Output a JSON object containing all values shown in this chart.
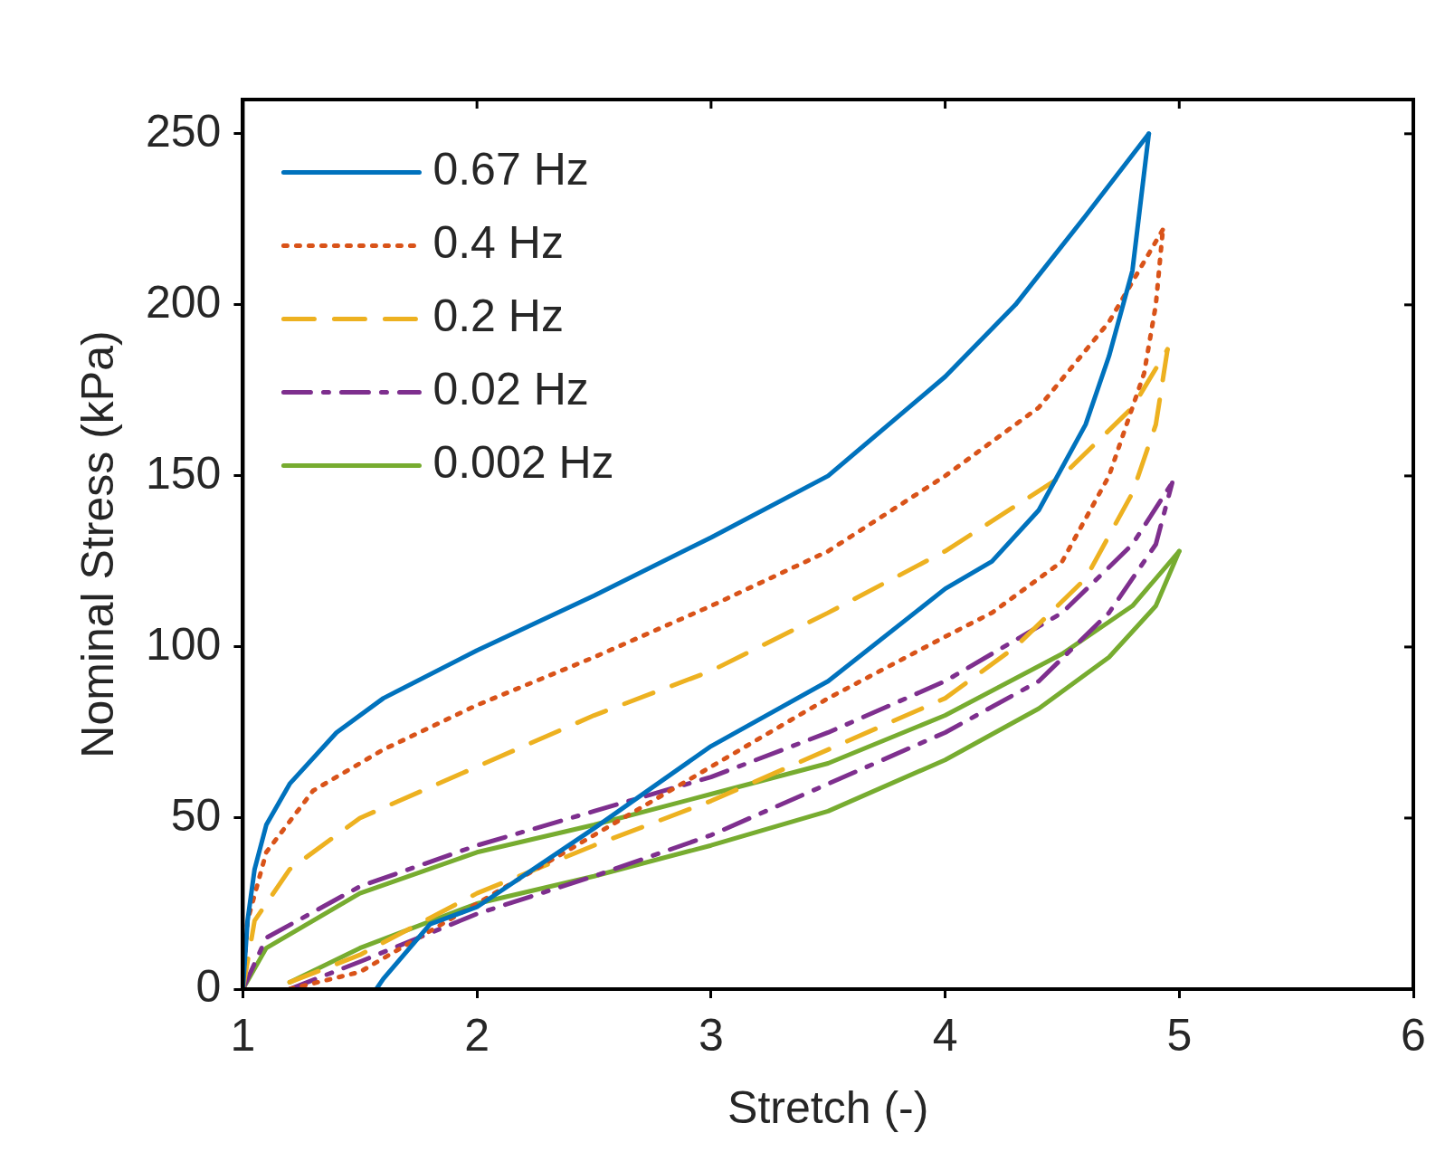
{
  "chart_data": {
    "type": "line",
    "xlabel": "Stretch (-)",
    "ylabel": "Nominal Stress (kPa)",
    "xlim": [
      1,
      6
    ],
    "ylim": [
      0,
      260
    ],
    "xticks": [
      1,
      2,
      3,
      4,
      5,
      6
    ],
    "yticks": [
      0,
      50,
      100,
      150,
      200,
      250
    ],
    "grid": false,
    "legend": "top left",
    "marker": "none",
    "series": [
      {
        "name": "0.67 Hz",
        "color": "#0072bd",
        "line_style": "solid",
        "x": [
          1,
          1.02,
          1.05,
          1.1,
          1.2,
          1.4,
          1.6,
          2,
          2.5,
          3,
          3.5,
          4,
          4.3,
          4.6,
          4.87
        ],
        "values": [
          0,
          20,
          35,
          48,
          60,
          75,
          85,
          99,
          115,
          132,
          150,
          179,
          200,
          226,
          250
        ]
      },
      {
        "color": "#0072bd",
        "line_style": "solid",
        "x": [
          1.57,
          1.6,
          1.8,
          2,
          2.5,
          3,
          3.5,
          4,
          4.2,
          4.4,
          4.6,
          4.7,
          4.8,
          4.87
        ],
        "values": [
          0,
          3,
          19,
          24,
          47,
          71,
          90,
          117,
          125,
          140,
          165,
          185,
          210,
          250
        ]
      },
      {
        "name": "0.4 Hz",
        "color": "#d95319",
        "line_style": "dotted",
        "x": [
          1,
          1.02,
          1.1,
          1.3,
          1.6,
          2,
          2.5,
          3,
          3.5,
          4,
          4.4,
          4.7,
          4.93
        ],
        "values": [
          0,
          20,
          40,
          58,
          70,
          83,
          97,
          112,
          128,
          150,
          170,
          195,
          222
        ]
      },
      {
        "color": "#d95319",
        "line_style": "dotted",
        "x": [
          1.2,
          1.5,
          2,
          2.5,
          3,
          3.5,
          4,
          4.2,
          4.5,
          4.7,
          4.85,
          4.9,
          4.93
        ],
        "values": [
          0,
          5,
          25,
          45,
          65,
          85,
          103,
          110,
          125,
          150,
          180,
          200,
          222
        ]
      },
      {
        "name": "0.2 Hz",
        "color": "#edb120",
        "line_style": "dashed",
        "x": [
          1,
          1.05,
          1.2,
          1.5,
          2,
          2.5,
          3,
          3.5,
          4,
          4.5,
          4.8,
          4.95
        ],
        "values": [
          0,
          20,
          35,
          50,
          65,
          80,
          93,
          110,
          128,
          150,
          170,
          187
        ]
      },
      {
        "color": "#edb120",
        "line_style": "dashed",
        "x": [
          1.2,
          1.5,
          2,
          2.5,
          3,
          3.5,
          4,
          4.3,
          4.6,
          4.8,
          4.9,
          4.95
        ],
        "values": [
          2,
          10,
          28,
          42,
          55,
          70,
          85,
          100,
          120,
          145,
          165,
          187
        ]
      },
      {
        "name": "0.02 Hz",
        "color": "#7e2f8e",
        "line_style": "dashdot",
        "x": [
          1,
          1.1,
          1.5,
          2,
          2.5,
          3,
          3.5,
          4,
          4.5,
          4.8,
          4.97
        ],
        "values": [
          0,
          15,
          30,
          42,
          52,
          62,
          75,
          90,
          110,
          130,
          148
        ]
      },
      {
        "color": "#7e2f8e",
        "line_style": "dashdot",
        "x": [
          1.2,
          1.5,
          2,
          2.5,
          3,
          3.5,
          4,
          4.4,
          4.7,
          4.9,
          4.97
        ],
        "values": [
          0,
          8,
          22,
          33,
          45,
          60,
          75,
          90,
          110,
          130,
          148
        ]
      },
      {
        "name": "0.002 Hz",
        "color": "#77ac30",
        "line_style": "solid",
        "x": [
          1,
          1.1,
          1.5,
          2,
          2.5,
          3,
          3.5,
          4,
          4.5,
          4.8,
          5
        ],
        "values": [
          0,
          12,
          28,
          40,
          48,
          57,
          66,
          80,
          98,
          112,
          128
        ]
      },
      {
        "color": "#77ac30",
        "line_style": "solid",
        "x": [
          1.2,
          1.5,
          2,
          2.5,
          3,
          3.5,
          4,
          4.4,
          4.7,
          4.9,
          5
        ],
        "values": [
          2,
          12,
          25,
          33,
          42,
          52,
          67,
          82,
          97,
          112,
          128
        ]
      }
    ]
  }
}
